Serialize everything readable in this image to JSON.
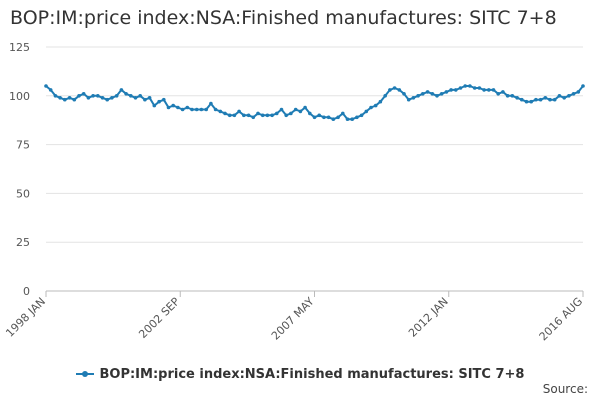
{
  "chart_data": {
    "type": "line",
    "title": "BOP:IM:price index:NSA:Finished manufactures: SITC 7+8",
    "y_ticks": [
      "0",
      "25",
      "50",
      "75",
      "100",
      "125"
    ],
    "ylim": [
      0,
      125
    ],
    "x_ticks": [
      "1998 JAN",
      "2002 SEP",
      "2007 MAY",
      "2012 JAN",
      "2016 AUG"
    ],
    "grid": true,
    "legend_placement": "bottom",
    "series": [
      {
        "name": "BOP:IM:price index:NSA:Finished manufactures: SITC 7+8",
        "color": "#1f7cb4",
        "values": [
          105,
          103,
          100,
          99,
          98,
          99,
          98,
          100,
          101,
          99,
          100,
          100,
          99,
          98,
          99,
          100,
          103,
          101,
          100,
          99,
          100,
          98,
          99,
          95,
          97,
          98,
          94,
          95,
          94,
          93,
          94,
          93,
          93,
          93,
          93,
          96,
          93,
          92,
          91,
          90,
          90,
          92,
          90,
          90,
          89,
          91,
          90,
          90,
          90,
          91,
          93,
          90,
          91,
          93,
          92,
          94,
          91,
          89,
          90,
          89,
          89,
          88,
          89,
          91,
          88,
          88,
          89,
          90,
          92,
          94,
          95,
          97,
          100,
          103,
          104,
          103,
          101,
          98,
          99,
          100,
          101,
          102,
          101,
          100,
          101,
          102,
          103,
          103,
          104,
          105,
          105,
          104,
          104,
          103,
          103,
          103,
          101,
          102,
          100,
          100,
          99,
          98,
          97,
          97,
          98,
          98,
          99,
          98,
          98,
          100,
          99,
          100,
          101,
          102,
          105
        ]
      }
    ]
  },
  "legend": {
    "label": "BOP:IM:price index:NSA:Finished manufactures: SITC 7+8"
  },
  "source": {
    "label": "Source:"
  }
}
